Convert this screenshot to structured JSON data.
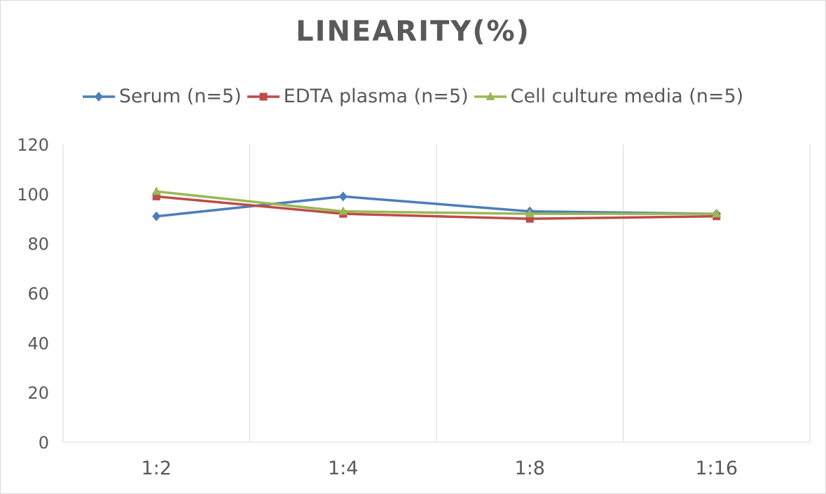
{
  "chart_data": {
    "type": "line",
    "title": "LINEARITY(%)",
    "categories": [
      "1:2",
      "1:4",
      "1:8",
      "1:16"
    ],
    "ylim": [
      0,
      120
    ],
    "yticks": [
      "0",
      "20",
      "40",
      "60",
      "80",
      "100",
      "120"
    ],
    "grid": "vertical",
    "legend": "top",
    "series": [
      {
        "name": "Serum (n=5)",
        "color": "#4a7ebb",
        "marker": "diamond",
        "values": [
          91,
          99,
          93,
          92
        ]
      },
      {
        "name": "EDTA plasma (n=5)",
        "color": "#be4b48",
        "marker": "square",
        "values": [
          99,
          92,
          90,
          91
        ]
      },
      {
        "name": "Cell culture media (n=5)",
        "color": "#98b954",
        "marker": "triangle",
        "values": [
          101,
          93,
          92,
          92
        ]
      }
    ]
  }
}
